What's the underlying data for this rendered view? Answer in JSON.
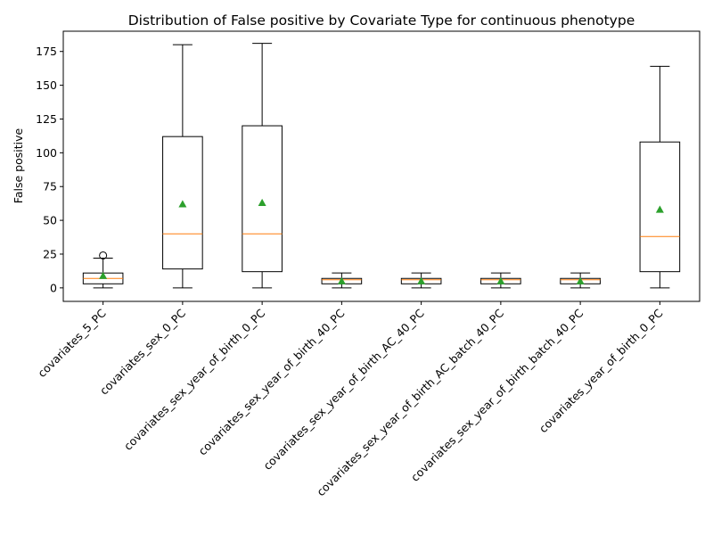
{
  "chart_data": {
    "type": "box",
    "title": "Distribution of False positive by Covariate Type for continuous phenotype",
    "xlabel": "",
    "ylabel": "False positive",
    "ylim": [
      -10,
      190
    ],
    "yticks": [
      0,
      25,
      50,
      75,
      100,
      125,
      150,
      175
    ],
    "grid": false,
    "colors": {
      "box": "#000000",
      "median": "#ff7f0e",
      "mean_marker": "#2ca02c"
    },
    "categories": [
      "covariates_5_PC",
      "covariates_sex_0_PC",
      "covariates_sex_year_of_birth_0_PC",
      "covariates_sex_year_of_birth_40_PC",
      "covariates_sex_year_of_birth_AC_40_PC",
      "covariates_sex_year_of_birth_AC_batch_40_PC",
      "covariates_sex_year_of_birth_batch_40_PC",
      "covariates_year_of_birth_0_PC"
    ],
    "boxes": [
      {
        "whisker_low": 0,
        "q1": 3,
        "median": 7,
        "q3": 11,
        "whisker_high": 22,
        "mean": 9,
        "outliers": [
          24
        ]
      },
      {
        "whisker_low": 0,
        "q1": 14,
        "median": 40,
        "q3": 112,
        "whisker_high": 180,
        "mean": 62,
        "outliers": []
      },
      {
        "whisker_low": 0,
        "q1": 12,
        "median": 40,
        "q3": 120,
        "whisker_high": 181,
        "mean": 63,
        "outliers": []
      },
      {
        "whisker_low": 0,
        "q1": 3,
        "median": 6,
        "q3": 7,
        "whisker_high": 11,
        "mean": 5,
        "outliers": []
      },
      {
        "whisker_low": 0,
        "q1": 3,
        "median": 6,
        "q3": 7,
        "whisker_high": 11,
        "mean": 5,
        "outliers": []
      },
      {
        "whisker_low": 0,
        "q1": 3,
        "median": 6,
        "q3": 7,
        "whisker_high": 11,
        "mean": 5,
        "outliers": []
      },
      {
        "whisker_low": 0,
        "q1": 3,
        "median": 6,
        "q3": 7,
        "whisker_high": 11,
        "mean": 5,
        "outliers": []
      },
      {
        "whisker_low": 0,
        "q1": 12,
        "median": 38,
        "q3": 108,
        "whisker_high": 164,
        "mean": 58,
        "outliers": []
      }
    ]
  }
}
